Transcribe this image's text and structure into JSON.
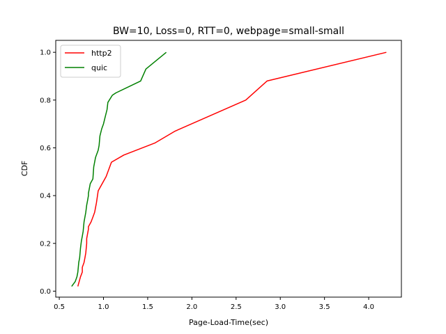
{
  "chart_data": {
    "type": "line",
    "title": "BW=10, Loss=0, RTT=0, webpage=small-small",
    "xlabel": "Page-Load-Time(sec)",
    "ylabel": "CDF",
    "xlim": [
      0.46,
      4.37
    ],
    "ylim": [
      -0.025,
      1.05
    ],
    "xticks": [
      "0.5",
      "1.0",
      "1.5",
      "2.0",
      "2.5",
      "3.0",
      "3.5",
      "4.0"
    ],
    "yticks": [
      "0.0",
      "0.2",
      "0.4",
      "0.6",
      "0.8",
      "1.0"
    ],
    "grid": false,
    "legend_position": "top-left",
    "series": [
      {
        "name": "http2",
        "color": "#ff0000",
        "x": [
          0.71,
          0.74,
          0.76,
          0.76,
          0.78,
          0.79,
          0.8,
          0.81,
          0.81,
          0.83,
          0.83,
          0.86,
          0.88,
          0.9,
          0.91,
          0.92,
          0.94,
          1.03,
          1.09,
          1.23,
          1.58,
          1.81,
          2.61,
          2.85,
          4.2
        ],
        "y": [
          0.02,
          0.06,
          0.08,
          0.1,
          0.12,
          0.14,
          0.16,
          0.2,
          0.22,
          0.26,
          0.27,
          0.29,
          0.31,
          0.33,
          0.35,
          0.37,
          0.42,
          0.48,
          0.54,
          0.57,
          0.62,
          0.67,
          0.8,
          0.88,
          1.0
        ]
      },
      {
        "name": "quic",
        "color": "#008000",
        "x": [
          0.64,
          0.68,
          0.7,
          0.71,
          0.72,
          0.73,
          0.74,
          0.75,
          0.76,
          0.77,
          0.78,
          0.8,
          0.81,
          0.82,
          0.83,
          0.83,
          0.85,
          0.88,
          0.89,
          0.91,
          0.94,
          0.95,
          0.96,
          0.98,
          1.0,
          1.02,
          1.04,
          1.05,
          1.1,
          1.14,
          1.42,
          1.48,
          1.71
        ],
        "y": [
          0.02,
          0.04,
          0.06,
          0.08,
          0.12,
          0.14,
          0.18,
          0.21,
          0.23,
          0.25,
          0.29,
          0.33,
          0.36,
          0.38,
          0.4,
          0.41,
          0.45,
          0.47,
          0.52,
          0.56,
          0.59,
          0.61,
          0.65,
          0.68,
          0.7,
          0.73,
          0.76,
          0.79,
          0.82,
          0.83,
          0.88,
          0.93,
          1.0
        ]
      }
    ]
  }
}
